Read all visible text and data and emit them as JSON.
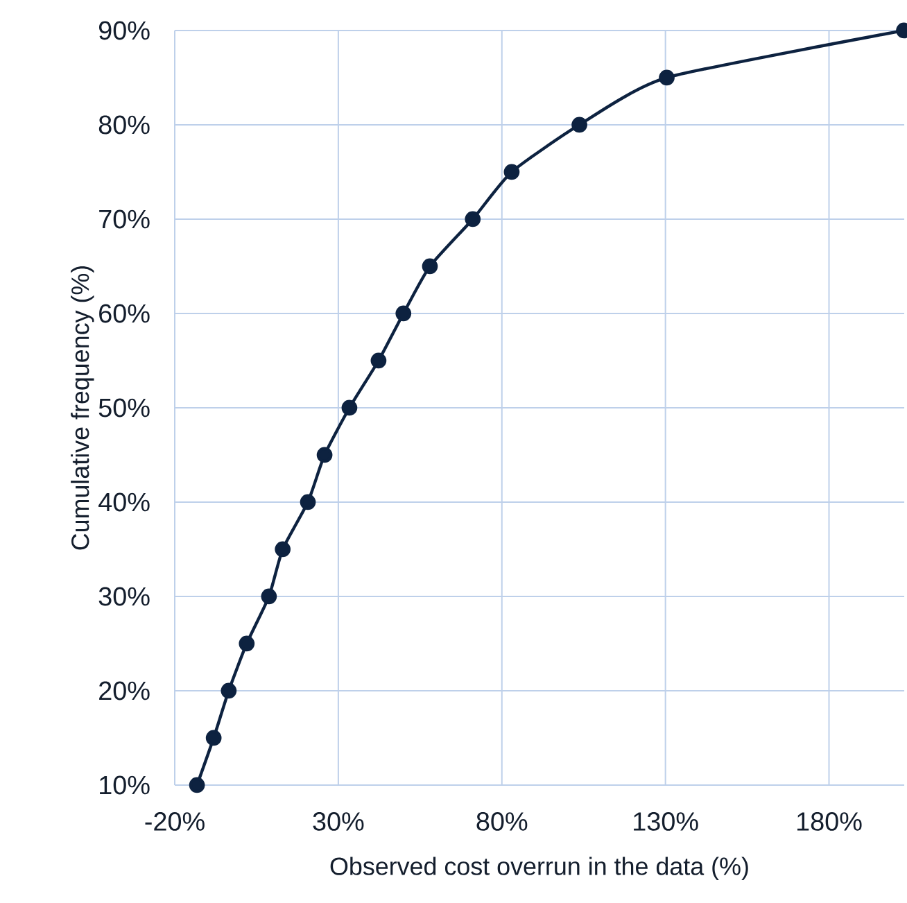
{
  "chart_data": {
    "type": "line",
    "xlabel": "Observed cost overrun in the data (%)",
    "ylabel": "Cumulative frequency (%)",
    "series": [
      {
        "color": "#0d2240",
        "x": [
          -13.2,
          -8.1,
          -3.5,
          2,
          8.8,
          13,
          20.7,
          25.8,
          33.4,
          42.3,
          49.9,
          58,
          71.1,
          83,
          103.7,
          130.4,
          202.9
        ],
        "values": [
          10,
          15,
          20,
          25,
          30,
          35,
          40,
          45,
          50,
          55,
          60,
          65,
          70,
          75,
          80,
          85,
          90
        ]
      }
    ],
    "xlim": [
      -20,
      203
    ],
    "ylim": [
      10,
      90
    ],
    "xticks": [
      {
        "value": -20,
        "label": "-20%"
      },
      {
        "value": 30,
        "label": "30%"
      },
      {
        "value": 80,
        "label": "80%"
      },
      {
        "value": 130,
        "label": "130%"
      },
      {
        "value": 180,
        "label": "180%"
      }
    ],
    "yticks": [
      {
        "value": 10,
        "label": "10%"
      },
      {
        "value": 20,
        "label": "20%"
      },
      {
        "value": 30,
        "label": "30%"
      },
      {
        "value": 40,
        "label": "40%"
      },
      {
        "value": 50,
        "label": "50%"
      },
      {
        "value": 60,
        "label": "60%"
      },
      {
        "value": 70,
        "label": "70%"
      },
      {
        "value": 80,
        "label": "80%"
      },
      {
        "value": 90,
        "label": "90%"
      }
    ],
    "grid": true,
    "marker": "circle",
    "line_style": "solid"
  }
}
